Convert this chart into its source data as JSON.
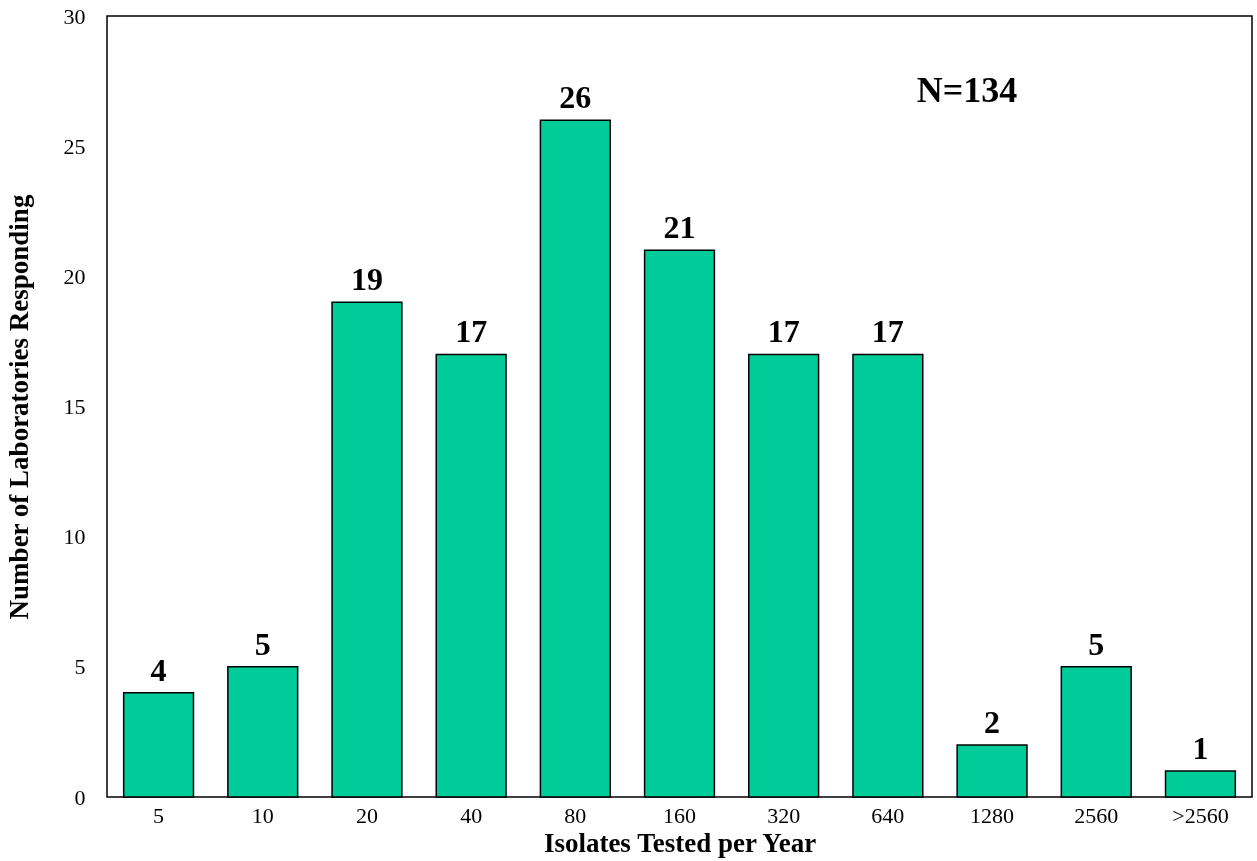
{
  "chart_data": {
    "type": "bar",
    "categories": [
      "5",
      "10",
      "20",
      "40",
      "80",
      "160",
      "320",
      "640",
      "1280",
      "2560",
      ">2560"
    ],
    "values": [
      4,
      5,
      19,
      17,
      26,
      21,
      17,
      17,
      2,
      5,
      1
    ],
    "color": "#00cc99",
    "xlabel": "Isolates Tested per Year",
    "ylabel": "Number of Laboratories Responding",
    "ylim": [
      0,
      30
    ],
    "yticks": [
      0,
      5,
      10,
      15,
      20,
      25,
      30
    ],
    "data_labels": true,
    "grid": false,
    "annotations": [
      "N=134"
    ]
  }
}
